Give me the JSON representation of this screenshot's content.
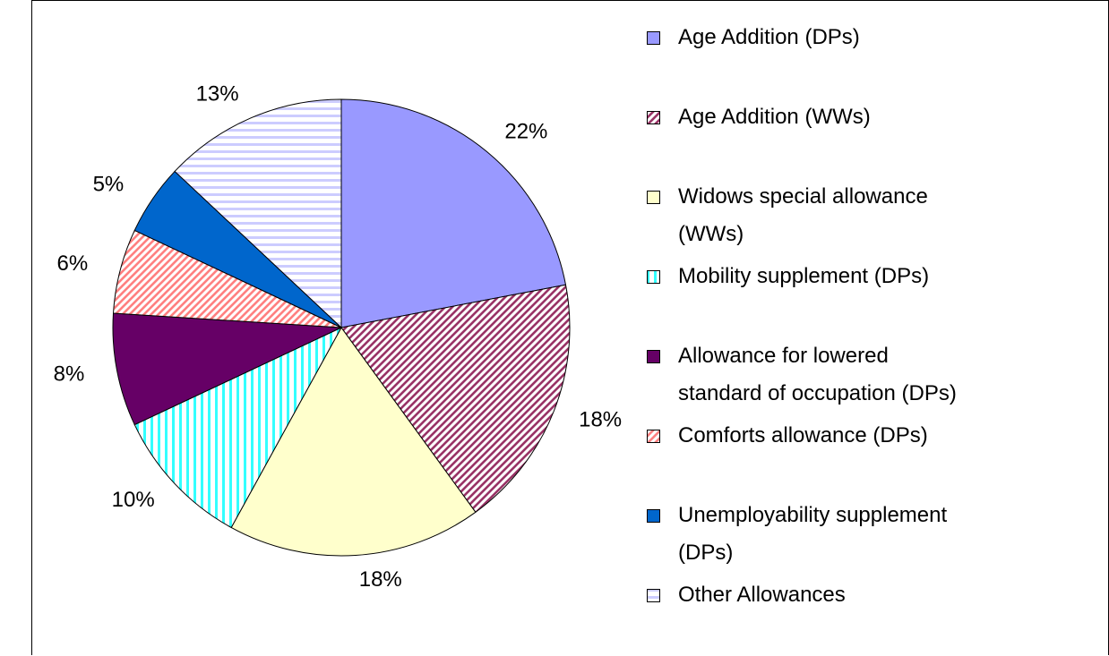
{
  "chart_data": {
    "type": "pie",
    "categories": [
      "Age Addition (DPs)",
      "Age Addition (WWs)",
      "Widows special allowance\n(WWs)",
      "Mobility supplement (DPs)",
      "Allowance for lowered\nstandard of occupation (DPs)",
      "Comforts allowance (DPs)",
      "Unemployability supplement\n(DPs)",
      "Other Allowances"
    ],
    "values": [
      22,
      18,
      18,
      10,
      8,
      6,
      5,
      13
    ],
    "value_labels": [
      "22%",
      "18%",
      "18%",
      "10%",
      "8%",
      "6%",
      "5%",
      "13%"
    ],
    "colors": [
      "#9999ff",
      "#993366",
      "#ffffcc",
      "#33ffff",
      "#660066",
      "#ff8080",
      "#0066cc",
      "#ccccff"
    ],
    "patterns": [
      "solid",
      "diagonal",
      "solid",
      "vertical",
      "solid",
      "diagonal",
      "solid",
      "horizontal"
    ],
    "legend": "right"
  }
}
